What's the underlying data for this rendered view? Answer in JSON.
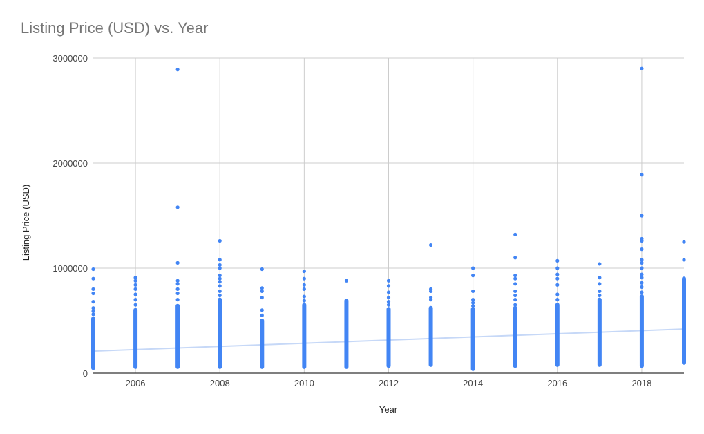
{
  "chart_data": {
    "type": "scatter",
    "title": "Listing Price (USD) vs. Year",
    "xlabel": "Year",
    "ylabel": "Listing Price (USD)",
    "xlim": [
      2005,
      2019
    ],
    "ylim": [
      0,
      3000000
    ],
    "x_ticks": [
      2006,
      2008,
      2010,
      2012,
      2014,
      2016,
      2018
    ],
    "x_tick_labels": [
      "2006",
      "2008",
      "2010",
      "2012",
      "2014",
      "2016",
      "2018"
    ],
    "y_ticks": [
      0,
      1000000,
      2000000,
      3000000
    ],
    "y_tick_labels": [
      "0",
      "1000000",
      "2000000",
      "3000000"
    ],
    "grid": true,
    "legend": "none",
    "colors": {
      "points": "#4285f4",
      "trendline": "#c6d8f7",
      "grid": "#cccccc",
      "axis": "#333333"
    },
    "columns": [
      {
        "x": 2005,
        "min": 50000,
        "max": 520000,
        "outliers": [
          560000,
          590000,
          620000,
          680000,
          760000,
          800000,
          900000,
          990000
        ]
      },
      {
        "x": 2006,
        "min": 60000,
        "max": 600000,
        "outliers": [
          650000,
          700000,
          750000,
          800000,
          840000,
          880000,
          910000
        ]
      },
      {
        "x": 2007,
        "min": 60000,
        "max": 640000,
        "outliers": [
          700000,
          760000,
          800000,
          850000,
          880000,
          1050000,
          1580000,
          2890000
        ]
      },
      {
        "x": 2008,
        "min": 60000,
        "max": 700000,
        "outliers": [
          740000,
          780000,
          830000,
          870000,
          900000,
          930000,
          1000000,
          1030000,
          1080000,
          1260000
        ]
      },
      {
        "x": 2009,
        "min": 60000,
        "max": 500000,
        "outliers": [
          550000,
          600000,
          720000,
          780000,
          810000,
          990000
        ]
      },
      {
        "x": 2010,
        "min": 60000,
        "max": 650000,
        "outliers": [
          690000,
          730000,
          800000,
          840000,
          900000,
          970000
        ]
      },
      {
        "x": 2011,
        "min": 60000,
        "max": 690000,
        "outliers": [
          880000
        ]
      },
      {
        "x": 2012,
        "min": 70000,
        "max": 610000,
        "outliers": [
          650000,
          680000,
          720000,
          770000,
          830000,
          880000
        ]
      },
      {
        "x": 2013,
        "min": 80000,
        "max": 620000,
        "outliers": [
          700000,
          720000,
          780000,
          800000,
          1220000
        ]
      },
      {
        "x": 2014,
        "min": 40000,
        "max": 610000,
        "outliers": [
          640000,
          670000,
          700000,
          780000,
          930000,
          1000000
        ]
      },
      {
        "x": 2015,
        "min": 70000,
        "max": 620000,
        "outliers": [
          650000,
          700000,
          740000,
          780000,
          850000,
          900000,
          930000,
          1100000,
          1320000
        ]
      },
      {
        "x": 2016,
        "min": 80000,
        "max": 650000,
        "outliers": [
          700000,
          750000,
          840000,
          900000,
          940000,
          1000000,
          1070000
        ]
      },
      {
        "x": 2017,
        "min": 80000,
        "max": 700000,
        "outliers": [
          740000,
          780000,
          850000,
          910000,
          1040000
        ]
      },
      {
        "x": 2018,
        "min": 70000,
        "max": 730000,
        "outliers": [
          770000,
          820000,
          860000,
          910000,
          940000,
          1000000,
          1050000,
          1080000,
          1180000,
          1260000,
          1280000,
          1500000,
          1890000,
          2900000
        ]
      },
      {
        "x": 2019,
        "min": 100000,
        "max": 900000,
        "outliers": [
          1080000,
          1250000
        ]
      }
    ],
    "trendline": {
      "x": [
        2005,
        2019
      ],
      "y": [
        210000,
        420000
      ]
    }
  }
}
